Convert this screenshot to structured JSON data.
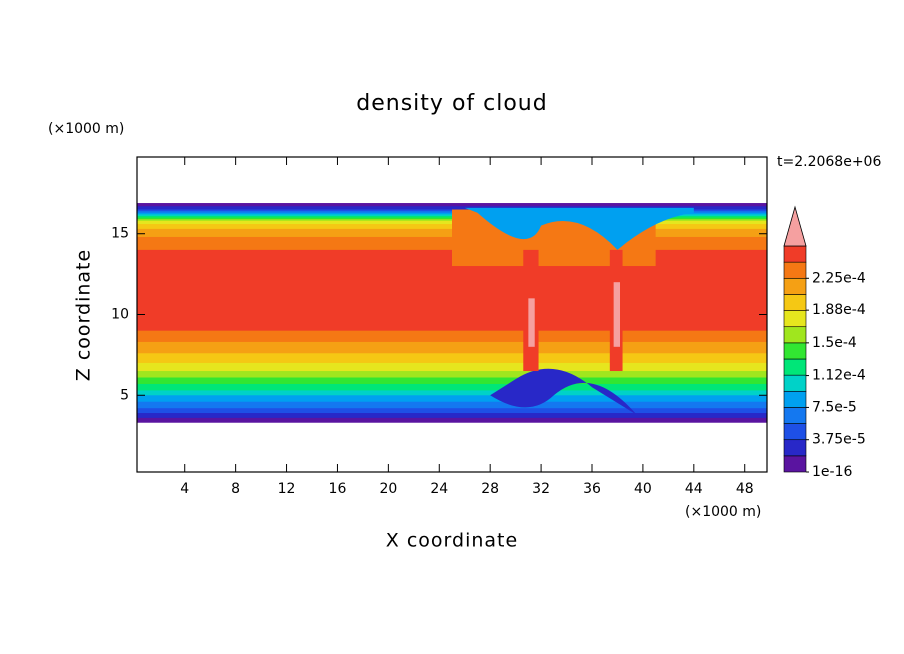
{
  "chart_data": {
    "type": "contour",
    "title": "density of cloud",
    "x_label": "X coordinate",
    "y_label": "Z coordinate",
    "x_unit": "(×1000 m)",
    "y_unit": "(×1000 m)",
    "time_label": "t=2.2068e+06",
    "xlim": [
      0.25,
      49.75
    ],
    "ylim": [
      0.25,
      19.75
    ],
    "xticks": [
      4,
      8,
      12,
      16,
      20,
      24,
      28,
      32,
      36,
      40,
      44,
      48
    ],
    "yticks": [
      5,
      10,
      15
    ],
    "colorbar": {
      "clim": [
        0,
        0.0002625
      ],
      "colors": [
        "#5a14a0",
        "#2828c8",
        "#1e50e6",
        "#1478f0",
        "#00a0f0",
        "#00d2c8",
        "#00e678",
        "#32e632",
        "#a0e61e",
        "#e6e61e",
        "#f5c814",
        "#f5a014",
        "#f57814",
        "#f03c28"
      ],
      "extend_color": "#f5a0a0",
      "ticks": [
        {
          "value": 1e-16,
          "label": "1e-16"
        },
        {
          "value": 3.75e-05,
          "label": "3.75e-5"
        },
        {
          "value": 7.5e-05,
          "label": "7.5e-5"
        },
        {
          "value": 0.000112,
          "label": "1.12e-4"
        },
        {
          "value": 0.00015,
          "label": "1.5e-4"
        },
        {
          "value": 0.000188,
          "label": "1.88e-4"
        },
        {
          "value": 0.000225,
          "label": "2.25e-4"
        }
      ]
    }
  }
}
